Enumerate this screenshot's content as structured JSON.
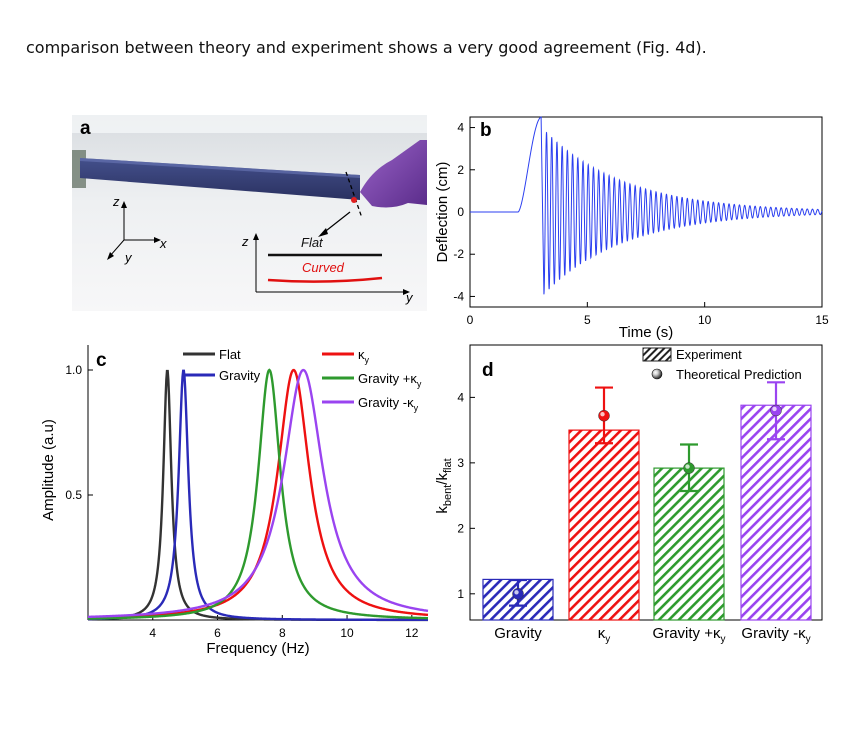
{
  "caption": "comparison between theory and experiment shows a very good agreement (Fig. 4d).",
  "panel_a": {
    "letter": "a",
    "axes": {
      "z1": "z",
      "x": "x",
      "y1": "y",
      "z2": "z",
      "y2": "y"
    },
    "flat_label": "Flat",
    "curved_label": "Curved",
    "flat_color": "#111111",
    "curved_color": "#e01010"
  },
  "colors": {
    "flat": "#333333",
    "gravity": "#2a2ab8",
    "ky": "#ee1111",
    "gravity_plus": "#2e9a2e",
    "gravity_minus": "#9a44f0",
    "deflection": "#2b3ff0"
  },
  "chart_data": [
    {
      "panel": "b",
      "type": "line",
      "xlabel": "Time (s)",
      "ylabel": "Deflection (cm)",
      "xlim": [
        0,
        15
      ],
      "ylim": [
        -4.5,
        4.5
      ],
      "xticks": [
        0,
        5,
        10,
        15
      ],
      "yticks": [
        4,
        2,
        0,
        -2,
        -4
      ],
      "series": [
        {
          "pre_signal_until": 2.0,
          "rise_start": 2.05,
          "peak_time": 3.05,
          "peak_value": 4.5,
          "first_trough_time": 3.15,
          "first_trough_value": -3.9,
          "oscillation_frequency_hz": 4.5,
          "end_amplitude": 0.12
        }
      ]
    },
    {
      "panel": "c",
      "type": "line",
      "xlabel": "Frequency (Hz)",
      "ylabel": "Amplitude (a.u)",
      "xlim": [
        2,
        12.5
      ],
      "ylim": [
        0,
        1.1
      ],
      "xticks": [
        4,
        6,
        8,
        10,
        12
      ],
      "yticks": [
        0.5,
        1.0
      ],
      "ytick_labels": [
        "0.5",
        "1.0"
      ],
      "series": [
        {
          "name": "Flat",
          "peak_freq": 4.45,
          "half_width": 0.15,
          "peak": 1.0
        },
        {
          "name": "Gravity",
          "peak_freq": 4.95,
          "half_width": 0.18,
          "peak": 1.0
        },
        {
          "name": "κy",
          "peak_freq": 8.35,
          "half_width": 0.6,
          "peak": 1.0
        },
        {
          "name": "Gravity +κy",
          "peak_freq": 7.6,
          "half_width": 0.42,
          "peak": 1.0
        },
        {
          "name": "Gravity -κy",
          "peak_freq": 8.65,
          "half_width": 0.75,
          "peak": 1.0
        }
      ]
    },
    {
      "panel": "d",
      "type": "bar",
      "ylabel": "kbent/kflat",
      "categories": [
        "Gravity",
        "κy",
        "Gravity +κy",
        "Gravity -κy"
      ],
      "ylim": [
        0.6,
        4.8
      ],
      "yticks": [
        1,
        2,
        3,
        4
      ],
      "series": [
        {
          "name": "Experiment",
          "values": [
            1.22,
            3.5,
            2.92,
            3.88
          ]
        },
        {
          "name": "Theoretical Prediction",
          "values": [
            1.0,
            3.72,
            2.92,
            3.8
          ],
          "err_low": [
            0.82,
            3.3,
            2.57,
            3.36
          ],
          "err_high": [
            1.21,
            4.15,
            3.28,
            4.23
          ]
        }
      ]
    }
  ]
}
